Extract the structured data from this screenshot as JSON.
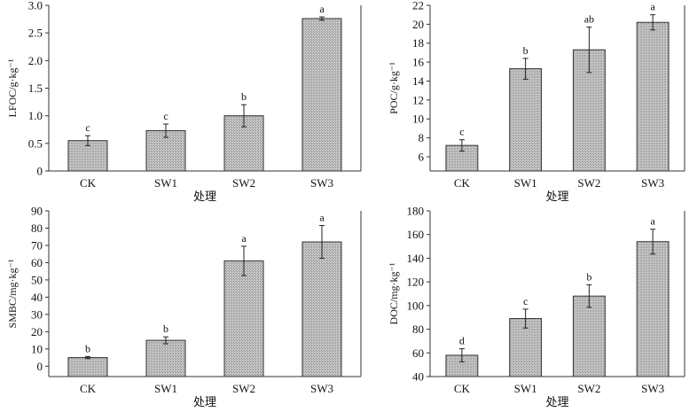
{
  "styles": {
    "bar_fill": "#bdbdbd",
    "bar_stroke": "#333333",
    "axis_color": "#333333"
  },
  "chart_data": [
    {
      "type": "bar",
      "categories": [
        "CK",
        "SW1",
        "SW2",
        "SW3"
      ],
      "values": [
        0.55,
        0.73,
        1.0,
        2.76
      ],
      "errors": [
        0.09,
        0.12,
        0.2,
        0.03
      ],
      "letters": [
        "c",
        "c",
        "b",
        "a"
      ],
      "ylabel": "LFOC/g·kg⁻¹",
      "xlabel": "处理",
      "ylim": [
        0,
        3.0
      ],
      "yticks": [
        "0",
        "0.5",
        "1.0",
        "1.5",
        "2.0",
        "2.5",
        "3.0"
      ],
      "ytick_values": [
        0,
        0.5,
        1.0,
        1.5,
        2.0,
        2.5,
        3.0
      ]
    },
    {
      "type": "bar",
      "categories": [
        "CK",
        "SW1",
        "SW2",
        "SW3"
      ],
      "values": [
        7.2,
        15.3,
        17.3,
        20.2
      ],
      "errors": [
        0.6,
        1.1,
        2.4,
        0.8
      ],
      "letters": [
        "c",
        "b",
        "ab",
        "a"
      ],
      "ylabel": "POC/g·kg⁻¹",
      "xlabel": "处理",
      "ylim": [
        4.5,
        22
      ],
      "yticks": [
        "6",
        "8",
        "10",
        "12",
        "14",
        "16",
        "18",
        "20",
        "22"
      ],
      "ytick_values": [
        6,
        8,
        10,
        12,
        14,
        16,
        18,
        20,
        22
      ]
    },
    {
      "type": "bar",
      "categories": [
        "CK",
        "SW1",
        "SW2",
        "SW3"
      ],
      "values": [
        5,
        15,
        61,
        72
      ],
      "errors": [
        0.6,
        2,
        8.5,
        9.5
      ],
      "letters": [
        "b",
        "b",
        "a",
        "a"
      ],
      "ylabel": "SMBC/mg·kg⁻¹",
      "xlabel": "处理",
      "ylim": [
        -6,
        90
      ],
      "yticks": [
        "0",
        "10",
        "20",
        "30",
        "40",
        "50",
        "60",
        "70",
        "80",
        "90"
      ],
      "ytick_values": [
        0,
        10,
        20,
        30,
        40,
        50,
        60,
        70,
        80,
        90
      ]
    },
    {
      "type": "bar",
      "categories": [
        "CK",
        "SW1",
        "SW2",
        "SW3"
      ],
      "values": [
        58,
        89,
        108,
        154
      ],
      "errors": [
        5.5,
        8,
        9.5,
        10.5
      ],
      "letters": [
        "d",
        "c",
        "b",
        "a"
      ],
      "ylabel": "DOC/mg·kg⁻¹",
      "xlabel": "处理",
      "ylim": [
        40,
        180
      ],
      "yticks": [
        "40",
        "60",
        "80",
        "100",
        "120",
        "140",
        "160",
        "180"
      ],
      "ytick_values": [
        40,
        60,
        80,
        100,
        120,
        140,
        160,
        180
      ]
    }
  ]
}
